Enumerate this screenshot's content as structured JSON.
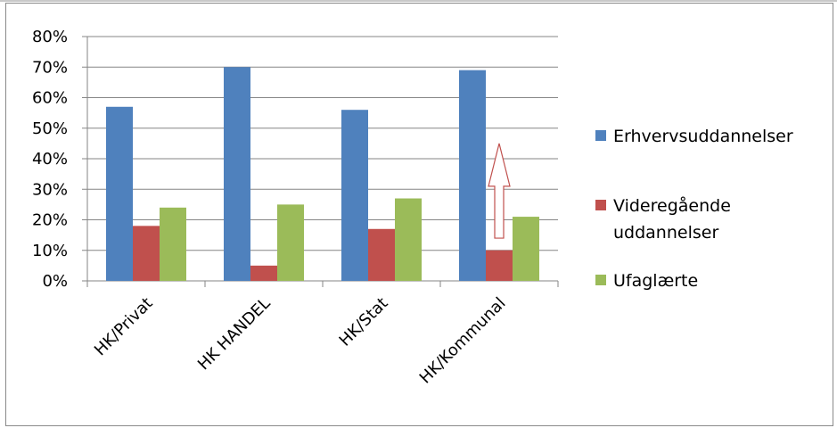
{
  "chart_data": {
    "type": "bar",
    "categories": [
      "HK/Privat",
      "HK HANDEL",
      "HK/Stat",
      "HK/Kommunal"
    ],
    "series": [
      {
        "name": "Erhvervsuddannelser",
        "color": "#4f81bd",
        "values": [
          57,
          70,
          56,
          69
        ]
      },
      {
        "name": "Videregående uddannelser",
        "color": "#c0504d",
        "values": [
          18,
          5,
          17,
          10
        ]
      },
      {
        "name": "Ufaglærte",
        "color": "#9bbb59",
        "values": [
          24,
          25,
          27,
          21
        ]
      }
    ],
    "legend_lines": [
      [
        "Erhvervsuddannelser"
      ],
      [
        "Videregående",
        "uddannelser"
      ],
      [
        "Ufaglærte"
      ]
    ],
    "ylim": [
      0,
      80
    ],
    "yticks": [
      0,
      10,
      20,
      30,
      40,
      50,
      60,
      70,
      80
    ],
    "ytick_labels": [
      "0%",
      "10%",
      "20%",
      "30%",
      "40%",
      "50%",
      "60%",
      "70%",
      "80%"
    ],
    "grid": true,
    "legend_position": "right",
    "annotation": {
      "type": "arrow-up",
      "category": "HK/Kommunal",
      "from_value": 14,
      "to_value": 45,
      "stroke_color": "#c0504d"
    }
  }
}
